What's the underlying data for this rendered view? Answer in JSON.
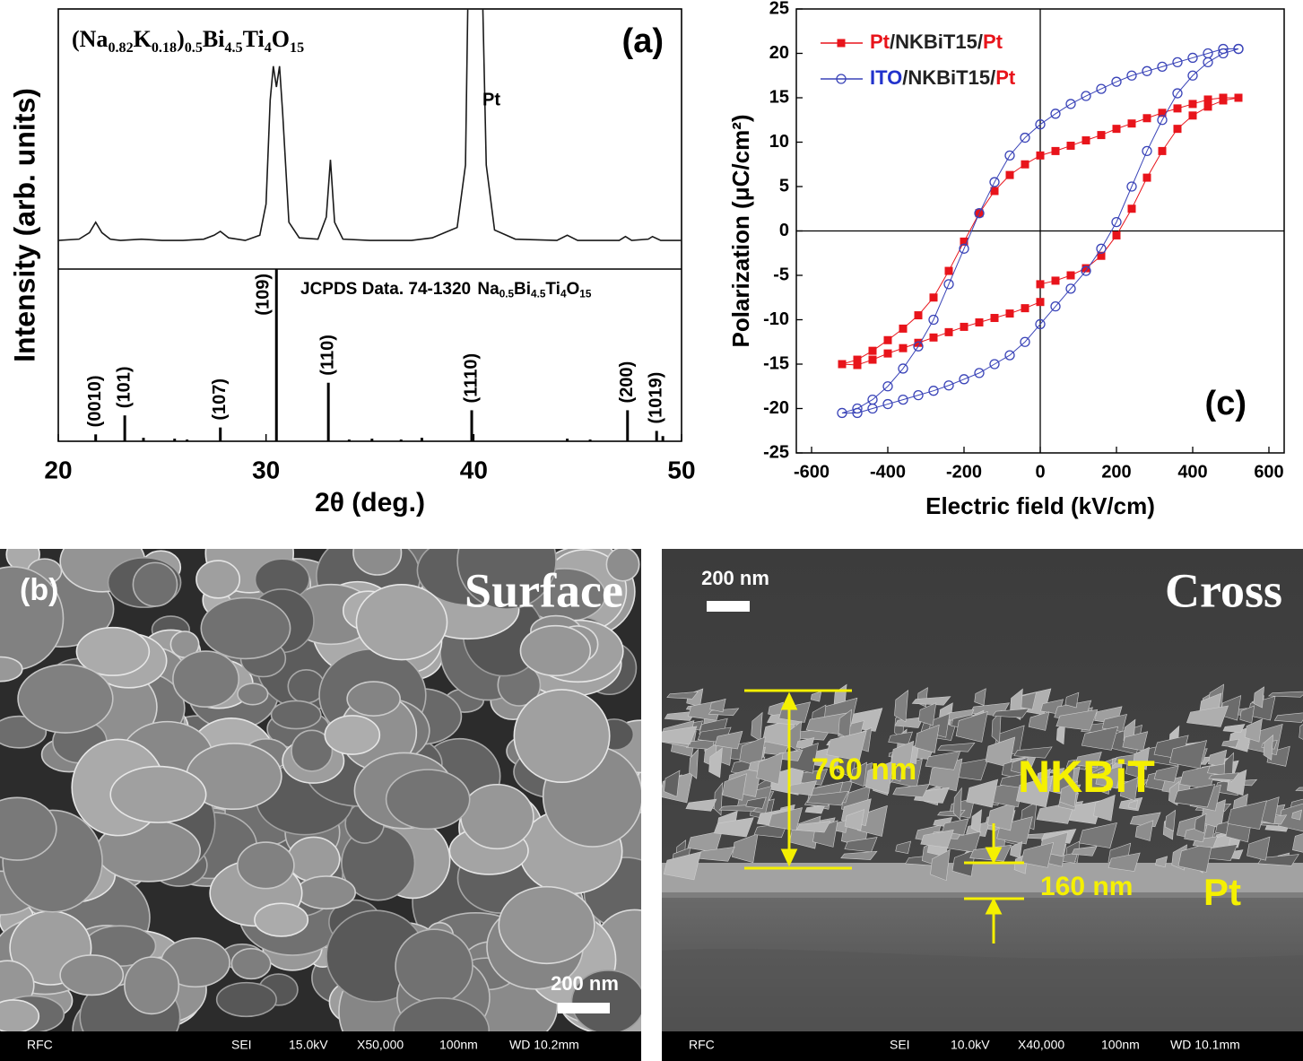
{
  "chart_data": [
    {
      "type": "line",
      "panel_label": "(a)",
      "formula": "(Na0.82K0.18)0.5Bi4.5Ti4O15",
      "annotation": "Pt",
      "x_label": "2θ (deg.)",
      "y_label": "Intensity (arb. units)",
      "color": "#1a1a1a",
      "x": [
        20,
        21,
        21.5,
        21.8,
        22.1,
        22.5,
        23,
        24,
        25,
        26,
        27,
        27.5,
        27.8,
        28.2,
        29,
        29.7,
        30.0,
        30.2,
        30.35,
        30.5,
        30.65,
        30.8,
        31.1,
        31.6,
        32.5,
        32.9,
        33.1,
        33.3,
        33.7,
        35,
        37,
        38,
        38.6,
        39.2,
        39.6,
        39.8,
        40.3,
        40.6,
        41,
        42,
        44,
        44.5,
        45,
        47,
        47.3,
        47.6,
        48.4,
        48.6,
        49,
        50
      ],
      "values": [
        11,
        11.5,
        14,
        18,
        14,
        11.5,
        11,
        11.5,
        11,
        11,
        11.5,
        13,
        14.5,
        12,
        11,
        13,
        25,
        65,
        78,
        70,
        78,
        60,
        18,
        12,
        11.5,
        20,
        42,
        18,
        11.5,
        11,
        11,
        12,
        14,
        16,
        40,
        150,
        150,
        40,
        15,
        11.5,
        11,
        13,
        11,
        11,
        12.5,
        11,
        11.5,
        12.5,
        11,
        11
      ],
      "xlim": [
        20,
        50
      ],
      "xticks": [
        20,
        30,
        40,
        50
      ],
      "ylim": [
        0,
        100
      ]
    },
    {
      "type": "stick",
      "database": "JCPDS Data. 74-1320",
      "compound": "Na0.5Bi4.5Ti4O15",
      "color": "#000000",
      "x": [
        21.8,
        23.2,
        24.1,
        25.6,
        26.2,
        27.8,
        30.5,
        33.0,
        34.0,
        35.1,
        36.5,
        37.5,
        39.9,
        44.5,
        45.6,
        47.4,
        48.8,
        49.1
      ],
      "values": [
        4,
        15,
        2,
        1.5,
        1,
        8,
        100,
        34,
        1,
        1.5,
        1,
        2,
        18,
        1.5,
        1,
        18,
        6,
        3
      ],
      "labels": [
        "(0010)",
        "(101)",
        null,
        null,
        null,
        "(107)",
        "(109)",
        "(110)",
        null,
        null,
        null,
        null,
        "(1110)",
        null,
        null,
        "(200)",
        "(1019)",
        null
      ],
      "ylim": [
        0,
        100
      ]
    },
    {
      "type": "hysteresis",
      "panel_label": "(c)",
      "x_label": "Electric field (kV/cm)",
      "y_label": "Polarization (μC/cm²)",
      "xlim": [
        -640,
        640
      ],
      "xticks": [
        -600,
        -400,
        -200,
        0,
        200,
        400,
        600
      ],
      "ylim": [
        -25,
        25
      ],
      "yticks": [
        -25,
        -20,
        -15,
        -10,
        -5,
        0,
        5,
        10,
        15,
        20,
        25
      ],
      "series": [
        {
          "name": "Pt/NKBiT15/Pt",
          "color": "#e8141b",
          "marker": "square",
          "name_colors": [
            "#e8141b",
            "#222222",
            "#e8141b"
          ],
          "x": [
            0,
            40,
            80,
            120,
            160,
            200,
            240,
            280,
            320,
            360,
            400,
            440,
            480,
            520,
            480,
            440,
            400,
            360,
            320,
            280,
            240,
            200,
            160,
            120,
            80,
            40,
            0,
            -40,
            -80,
            -120,
            -160,
            -200,
            -240,
            -280,
            -320,
            -360,
            -400,
            -440,
            -480,
            -520,
            -480,
            -440,
            -400,
            -360,
            -320,
            -280,
            -240,
            -200,
            -160,
            -120,
            -80,
            -40,
            0
          ],
          "values": [
            -6,
            -5.6,
            -5,
            -4.2,
            -2.8,
            -0.5,
            2.5,
            6,
            9,
            11.5,
            13,
            14,
            14.7,
            15,
            15,
            14.8,
            14.3,
            13.8,
            13.3,
            12.7,
            12.1,
            11.5,
            10.8,
            10.2,
            9.6,
            9,
            8.5,
            7.5,
            6.3,
            4.5,
            2,
            -1.2,
            -4.5,
            -7.5,
            -9.5,
            -11,
            -12.3,
            -13.5,
            -14.5,
            -15,
            -15.1,
            -14.5,
            -13.8,
            -13.2,
            -12.6,
            -12,
            -11.4,
            -10.8,
            -10.3,
            -9.8,
            -9.3,
            -8.7,
            -8
          ]
        },
        {
          "name": "ITO/NKBiT15/Pt",
          "color": "#3a44b8",
          "marker": "circle",
          "name_colors": [
            "#2233cc",
            "#222222",
            "#e8141b"
          ],
          "x": [
            520,
            480,
            440,
            400,
            360,
            320,
            280,
            240,
            200,
            160,
            120,
            80,
            40,
            0,
            -40,
            -80,
            -120,
            -160,
            -200,
            -240,
            -280,
            -320,
            -360,
            -400,
            -440,
            -480,
            -520,
            -480,
            -440,
            -400,
            -360,
            -320,
            -280,
            -240,
            -200,
            -160,
            -120,
            -80,
            -40,
            0,
            40,
            80,
            120,
            160,
            200,
            240,
            280,
            320,
            360,
            400,
            440,
            480,
            520
          ],
          "values": [
            20.5,
            20.5,
            20,
            19.5,
            19,
            18.5,
            18,
            17.5,
            16.8,
            16,
            15.2,
            14.3,
            13.2,
            12,
            10.5,
            8.5,
            5.5,
            2,
            -2,
            -6,
            -10,
            -13,
            -15.5,
            -17.5,
            -19,
            -20,
            -20.5,
            -20.5,
            -20,
            -19.5,
            -19,
            -18.5,
            -18,
            -17.4,
            -16.7,
            -16,
            -15,
            -14,
            -12.5,
            -10.5,
            -8.5,
            -6.5,
            -4.5,
            -2,
            1,
            5,
            9,
            12.5,
            15.5,
            17.5,
            19,
            20,
            20.5
          ]
        }
      ]
    }
  ],
  "micrographs": {
    "surface": {
      "panel_label": "(b)",
      "title": "Surface",
      "scale_bar": "200 nm",
      "info": [
        "RFC",
        "SEI",
        "15.0kV",
        "X50,000",
        "100nm",
        "WD 10.2mm"
      ]
    },
    "cross": {
      "title": "Cross",
      "scale_bar": "200 nm",
      "film_thickness": "760 nm",
      "film": "NKBiT",
      "electrode_thickness": "160 nm",
      "electrode": "Pt",
      "info": [
        "RFC",
        "SEI",
        "10.0kV",
        "X40,000",
        "100nm",
        "WD 10.1mm"
      ]
    }
  }
}
